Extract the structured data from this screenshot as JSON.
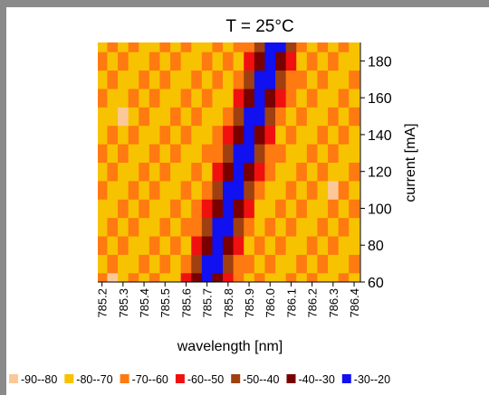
{
  "chart_data": {
    "type": "heatmap",
    "title": "T = 25°C",
    "x_label": "wavelength [nm]",
    "y_label": "current [mA]",
    "x": [
      785.2,
      785.25,
      785.3,
      785.35,
      785.4,
      785.45,
      785.5,
      785.55,
      785.6,
      785.65,
      785.7,
      785.75,
      785.8,
      785.85,
      785.9,
      785.95,
      786.0,
      786.05,
      786.1,
      786.15,
      786.2,
      786.25,
      786.3,
      786.35,
      786.4
    ],
    "y": [
      60,
      70,
      80,
      90,
      100,
      110,
      120,
      130,
      140,
      150,
      160,
      170,
      180,
      190
    ],
    "z": [
      [
        -65,
        -85,
        -75,
        -65,
        -75,
        -65,
        -75,
        -75,
        -55,
        -35,
        -25,
        -35,
        -55,
        -65,
        -75,
        -65,
        -75,
        -75,
        -65,
        -75,
        -65,
        -75,
        -75,
        -65,
        -75
      ],
      [
        -75,
        -65,
        -75,
        -75,
        -65,
        -75,
        -65,
        -75,
        -65,
        -45,
        -25,
        -25,
        -45,
        -65,
        -65,
        -75,
        -65,
        -75,
        -75,
        -65,
        -75,
        -65,
        -75,
        -75,
        -65
      ],
      [
        -65,
        -75,
        -65,
        -75,
        -75,
        -65,
        -75,
        -65,
        -75,
        -55,
        -35,
        -25,
        -35,
        -55,
        -75,
        -65,
        -75,
        -65,
        -75,
        -75,
        -65,
        -75,
        -65,
        -75,
        -75
      ],
      [
        -75,
        -65,
        -75,
        -65,
        -75,
        -75,
        -65,
        -75,
        -65,
        -65,
        -45,
        -25,
        -25,
        -45,
        -65,
        -75,
        -65,
        -75,
        -65,
        -75,
        -75,
        -65,
        -75,
        -65,
        -75
      ],
      [
        -75,
        -75,
        -65,
        -75,
        -65,
        -75,
        -75,
        -65,
        -75,
        -65,
        -55,
        -35,
        -25,
        -35,
        -55,
        -75,
        -75,
        -65,
        -75,
        -65,
        -75,
        -75,
        -65,
        -75,
        -65
      ],
      [
        -65,
        -75,
        -75,
        -65,
        -75,
        -65,
        -75,
        -75,
        -65,
        -75,
        -65,
        -45,
        -25,
        -25,
        -45,
        -65,
        -75,
        -75,
        -65,
        -75,
        -65,
        -75,
        -85,
        -65,
        -75
      ],
      [
        -75,
        -65,
        -75,
        -75,
        -65,
        -75,
        -65,
        -75,
        -75,
        -65,
        -75,
        -55,
        -35,
        -25,
        -35,
        -55,
        -65,
        -75,
        -75,
        -65,
        -75,
        -65,
        -75,
        -75,
        -65
      ],
      [
        -65,
        -75,
        -65,
        -75,
        -75,
        -65,
        -75,
        -65,
        -75,
        -75,
        -65,
        -65,
        -45,
        -25,
        -25,
        -45,
        -65,
        -65,
        -75,
        -75,
        -65,
        -75,
        -65,
        -75,
        -75
      ],
      [
        -75,
        -65,
        -75,
        -65,
        -75,
        -75,
        -65,
        -75,
        -65,
        -75,
        -75,
        -65,
        -55,
        -35,
        -25,
        -35,
        -55,
        -75,
        -65,
        -75,
        -75,
        -65,
        -75,
        -65,
        -75
      ],
      [
        -75,
        -75,
        -85,
        -75,
        -65,
        -75,
        -75,
        -65,
        -75,
        -65,
        -75,
        -75,
        -65,
        -45,
        -25,
        -25,
        -45,
        -65,
        -75,
        -65,
        -75,
        -75,
        -65,
        -75,
        -65
      ],
      [
        -65,
        -75,
        -75,
        -65,
        -75,
        -65,
        -75,
        -75,
        -65,
        -75,
        -65,
        -75,
        -75,
        -55,
        -35,
        -25,
        -35,
        -55,
        -65,
        -75,
        -65,
        -75,
        -75,
        -65,
        -75
      ],
      [
        -75,
        -65,
        -75,
        -75,
        -65,
        -75,
        -65,
        -75,
        -75,
        -65,
        -75,
        -65,
        -75,
        -65,
        -45,
        -25,
        -25,
        -45,
        -65,
        -65,
        -75,
        -65,
        -75,
        -75,
        -65
      ],
      [
        -65,
        -75,
        -65,
        -75,
        -75,
        -65,
        -75,
        -65,
        -75,
        -75,
        -65,
        -75,
        -65,
        -75,
        -55,
        -35,
        -25,
        -35,
        -55,
        -75,
        -65,
        -75,
        -65,
        -75,
        -75
      ],
      [
        -75,
        -65,
        -75,
        -65,
        -75,
        -75,
        -65,
        -75,
        -65,
        -75,
        -75,
        -65,
        -75,
        -65,
        -65,
        -45,
        -25,
        -25,
        -45,
        -65,
        -75,
        -65,
        -75,
        -65,
        -75
      ]
    ],
    "xlim": [
      785.18,
      786.43
    ],
    "ylim": [
      60,
      190
    ],
    "xticks": [
      785.2,
      785.3,
      785.4,
      785.5,
      785.6,
      785.7,
      785.8,
      785.9,
      {
        "value": 786,
        "label": "786.0"
      },
      786.1,
      786.2,
      786.3,
      786.4
    ],
    "yticks": [
      60,
      80,
      100,
      120,
      140,
      160,
      180
    ],
    "levels": [
      {
        "label": "-90--80",
        "min": -90,
        "max": -80,
        "color": "#fcc898"
      },
      {
        "label": "-80--70",
        "min": -80,
        "max": -70,
        "color": "#f7c200"
      },
      {
        "label": "-70--60",
        "min": -70,
        "max": -60,
        "color": "#ff7a10"
      },
      {
        "label": "-60--50",
        "min": -60,
        "max": -50,
        "color": "#f01010"
      },
      {
        "label": "-50--40",
        "min": -50,
        "max": -40,
        "color": "#a04010"
      },
      {
        "label": "-40--30",
        "min": -40,
        "max": -30,
        "color": "#7a0000"
      },
      {
        "label": "-30--20",
        "min": -30,
        "max": -20,
        "color": "#1010f0"
      }
    ]
  }
}
